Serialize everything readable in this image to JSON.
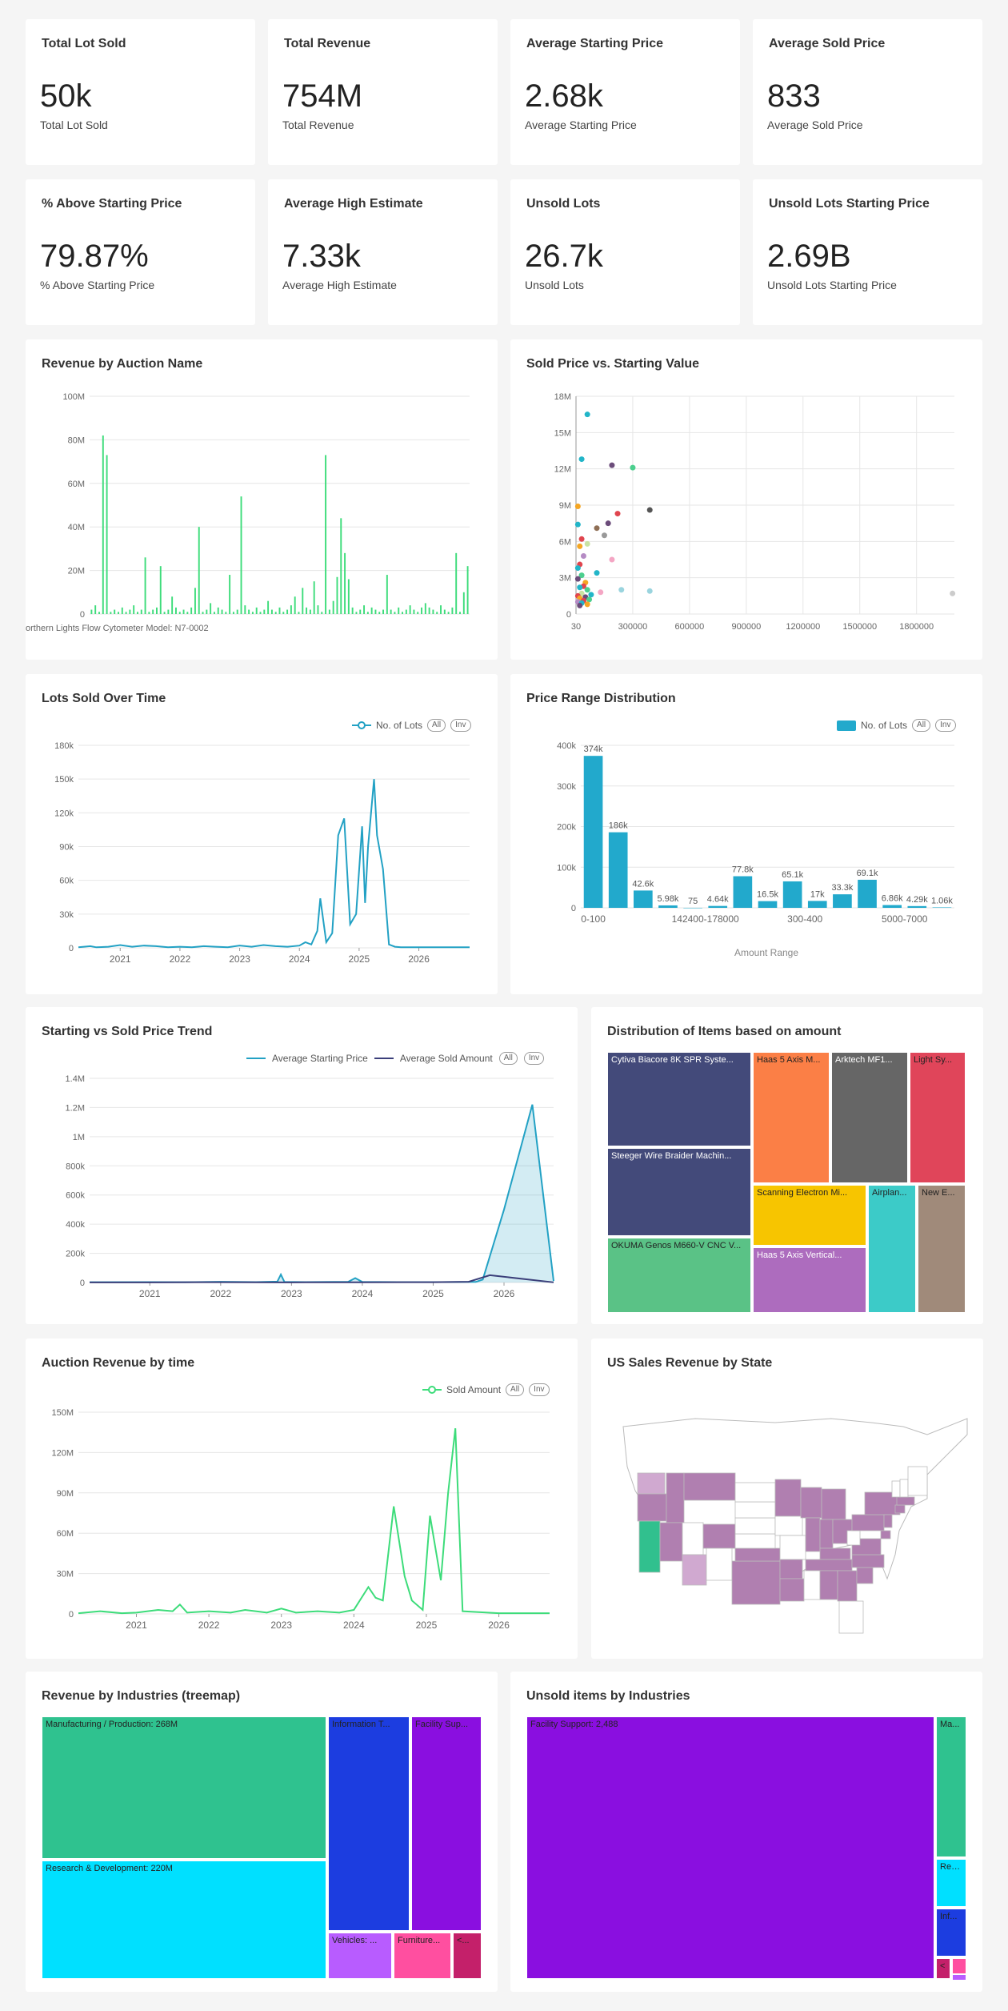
{
  "kpis": [
    {
      "title": "Total Lot Sold",
      "value": "50k",
      "sub": "Total Lot Sold"
    },
    {
      "title": "Total Revenue",
      "value": "754M",
      "sub": "Total Revenue"
    },
    {
      "title": "Average Starting Price",
      "value": "2.68k",
      "sub": "Average Starting Price"
    },
    {
      "title": "Average Sold Price",
      "value": "833",
      "sub": "Average Sold Price"
    },
    {
      "title": "% Above Starting Price",
      "value": "79.87%",
      "sub": "% Above Starting Price"
    },
    {
      "title": "Average High Estimate",
      "value": "7.33k",
      "sub": "Average High Estimate"
    },
    {
      "title": "Unsold Lots",
      "value": "26.7k",
      "sub": "Unsold Lots"
    },
    {
      "title": "Unsold Lots Starting Price",
      "value": "2.69B",
      "sub": "Unsold Lots Starting Price"
    }
  ],
  "legend_buttons": {
    "all": "All",
    "inv": "Inv"
  },
  "chart_data": [
    {
      "id": "revenue_by_auction",
      "type": "bar",
      "title": "Revenue by Auction Name",
      "yticks": [
        "0",
        "20M",
        "40M",
        "60M",
        "80M",
        "100M"
      ],
      "ylim": [
        0,
        100000000
      ],
      "xtick_label": "orthern Lights Flow Cytometer Model: N7-0002",
      "color": "#3ddc7a",
      "values": [
        2,
        4,
        1,
        82,
        73,
        1,
        2,
        1,
        3,
        1,
        2,
        4,
        1,
        2,
        26,
        1,
        2,
        3,
        22,
        1,
        2,
        8,
        3,
        1,
        2,
        1,
        3,
        12,
        40,
        1,
        2,
        5,
        1,
        3,
        2,
        1,
        18,
        1,
        2,
        54,
        4,
        2,
        1,
        3,
        1,
        2,
        6,
        2,
        1,
        3,
        1,
        2,
        4,
        8,
        1,
        12,
        3,
        2,
        15,
        4,
        1,
        73,
        2,
        6,
        17,
        44,
        28,
        16,
        3,
        1,
        2,
        4,
        1,
        3,
        2,
        1,
        2,
        18,
        2,
        1,
        3,
        1,
        2,
        4,
        2,
        1,
        3,
        5,
        3,
        2,
        1,
        4,
        2,
        1,
        3,
        28,
        1,
        10,
        22
      ]
    },
    {
      "id": "sold_vs_starting",
      "type": "scatter",
      "title": "Sold Price vs. Starting Value",
      "xticks": [
        "30",
        "300000",
        "600000",
        "900000",
        "1200000",
        "1500000",
        "1800000"
      ],
      "yticks": [
        "0",
        "3M",
        "6M",
        "9M",
        "12M",
        "15M",
        "18M"
      ],
      "xlim": [
        30,
        2000000
      ],
      "ylim": [
        0,
        18000000
      ],
      "points": [
        {
          "x": 60000,
          "y": 16500000,
          "c": "#22b5c8"
        },
        {
          "x": 30000,
          "y": 12800000,
          "c": "#22b5c8"
        },
        {
          "x": 190000,
          "y": 12300000,
          "c": "#6b4c7a"
        },
        {
          "x": 300000,
          "y": 12100000,
          "c": "#4ccf8e"
        },
        {
          "x": 10000,
          "y": 8900000,
          "c": "#f5a623"
        },
        {
          "x": 390000,
          "y": 8600000,
          "c": "#555555"
        },
        {
          "x": 220000,
          "y": 8300000,
          "c": "#e0454e"
        },
        {
          "x": 10000,
          "y": 7400000,
          "c": "#22b5c8"
        },
        {
          "x": 170000,
          "y": 7500000,
          "c": "#6b4c7a"
        },
        {
          "x": 110000,
          "y": 7100000,
          "c": "#8f6f55"
        },
        {
          "x": 150000,
          "y": 6500000,
          "c": "#999999"
        },
        {
          "x": 30000,
          "y": 6200000,
          "c": "#e0454e"
        },
        {
          "x": 60000,
          "y": 5800000,
          "c": "#c9e3a3"
        },
        {
          "x": 20000,
          "y": 5600000,
          "c": "#f5a623"
        },
        {
          "x": 40000,
          "y": 4800000,
          "c": "#b58bc4"
        },
        {
          "x": 190000,
          "y": 4500000,
          "c": "#f4a6c4"
        },
        {
          "x": 20000,
          "y": 4100000,
          "c": "#e0454e"
        },
        {
          "x": 10000,
          "y": 3800000,
          "c": "#22b5c8"
        },
        {
          "x": 110000,
          "y": 3400000,
          "c": "#22b5c8"
        },
        {
          "x": 30000,
          "y": 3200000,
          "c": "#4ccf8e"
        },
        {
          "x": 10000,
          "y": 2900000,
          "c": "#6b4c7a"
        },
        {
          "x": 50000,
          "y": 2600000,
          "c": "#f5a623"
        },
        {
          "x": 40000,
          "y": 2300000,
          "c": "#e0454e"
        },
        {
          "x": 20000,
          "y": 2200000,
          "c": "#22b5c8"
        },
        {
          "x": 60000,
          "y": 2000000,
          "c": "#4ccf8e"
        },
        {
          "x": 240000,
          "y": 2000000,
          "c": "#9ad4de"
        },
        {
          "x": 390000,
          "y": 1900000,
          "c": "#9ad4de"
        },
        {
          "x": 130000,
          "y": 1800000,
          "c": "#f4a6c4"
        },
        {
          "x": 30000,
          "y": 1700000,
          "c": "#c9e3a3"
        },
        {
          "x": 80000,
          "y": 1600000,
          "c": "#22b5c8"
        },
        {
          "x": 10000,
          "y": 1500000,
          "c": "#e0454e"
        },
        {
          "x": 50000,
          "y": 1400000,
          "c": "#6b4c7a"
        },
        {
          "x": 20000,
          "y": 1300000,
          "c": "#f5a623"
        },
        {
          "x": 70000,
          "y": 1200000,
          "c": "#4ccf8e"
        },
        {
          "x": 40000,
          "y": 1100000,
          "c": "#e0454e"
        },
        {
          "x": 10000,
          "y": 1000000,
          "c": "#b58bc4"
        },
        {
          "x": 30000,
          "y": 900000,
          "c": "#22b5c8"
        },
        {
          "x": 60000,
          "y": 800000,
          "c": "#f5a623"
        },
        {
          "x": 20000,
          "y": 700000,
          "c": "#6b4c7a"
        },
        {
          "x": 1990000,
          "y": 1700000,
          "c": "#cccccc"
        }
      ]
    },
    {
      "id": "lots_over_time",
      "type": "line",
      "title": "Lots Sold Over Time",
      "legend": "No. of Lots",
      "color": "#22a1c4",
      "xticks": [
        "2021",
        "2022",
        "2023",
        "2024",
        "2025",
        "2026"
      ],
      "xlim": [
        2020.3,
        2026.85
      ],
      "yticks": [
        "0",
        "30k",
        "60k",
        "90k",
        "120k",
        "150k",
        "180k"
      ],
      "ylim": [
        0,
        180000
      ],
      "x": [
        2020.3,
        2020.5,
        2020.6,
        2020.8,
        2021.0,
        2021.2,
        2021.4,
        2021.6,
        2021.8,
        2022.0,
        2022.2,
        2022.4,
        2022.6,
        2022.8,
        2023.0,
        2023.2,
        2023.4,
        2023.6,
        2023.8,
        2024.0,
        2024.1,
        2024.2,
        2024.3,
        2024.35,
        2024.45,
        2024.55,
        2024.65,
        2024.75,
        2024.85,
        2024.95,
        2025.05,
        2025.1,
        2025.15,
        2025.25,
        2025.3,
        2025.4,
        2025.5,
        2025.6,
        2025.7,
        2026.0,
        2026.5,
        2026.85
      ],
      "y": [
        500,
        1500,
        500,
        1000,
        2500,
        1000,
        2000,
        1500,
        500,
        1000,
        500,
        1500,
        1000,
        500,
        2000,
        1000,
        2500,
        1500,
        1000,
        2000,
        5000,
        3000,
        15000,
        44000,
        5000,
        13000,
        100000,
        115000,
        21000,
        30000,
        108000,
        40000,
        90000,
        150000,
        100000,
        70000,
        3000,
        1000,
        500,
        500,
        500,
        500
      ]
    },
    {
      "id": "price_range",
      "type": "bar",
      "title": "Price Range Distribution",
      "legend": "No. of Lots",
      "color": "#22a9cc",
      "xlabel": "Amount Range",
      "xtick_labels": [
        "0-100",
        "142400-178000",
        "300-400",
        "5000-7000"
      ],
      "yticks": [
        "0",
        "100k",
        "200k",
        "300k",
        "400k"
      ],
      "ylim": [
        0,
        400000
      ],
      "values": [
        374000,
        186000,
        42600,
        5980,
        75,
        4640,
        77800,
        16500,
        65100,
        17000,
        33300,
        69100,
        6860,
        4290,
        1060
      ],
      "labels": [
        "374k",
        "186k",
        "42.6k",
        "5.98k",
        "75",
        "4.64k",
        "77.8k",
        "16.5k",
        "65.1k",
        "17k",
        "33.3k",
        "69.1k",
        "6.86k",
        "4.29k",
        "1.06k"
      ]
    },
    {
      "id": "starting_vs_sold_trend",
      "type": "area",
      "title": "Starting vs Sold Price Trend",
      "xticks": [
        "2021",
        "2022",
        "2023",
        "2024",
        "2025",
        "2026"
      ],
      "xlim": [
        2020.15,
        2026.7
      ],
      "yticks": [
        "0",
        "200k",
        "400k",
        "600k",
        "800k",
        "1M",
        "1.2M",
        "1.4M"
      ],
      "ylim": [
        0,
        1400000
      ],
      "series": [
        {
          "name": "Average Starting Price",
          "color": "#22a1c4",
          "fill": "rgba(34,161,196,0.2)",
          "x": [
            2020.15,
            2021.0,
            2021.5,
            2022.0,
            2022.5,
            2022.8,
            2022.85,
            2022.9,
            2023.2,
            2023.8,
            2023.9,
            2024.0,
            2024.5,
            2025.0,
            2025.6,
            2025.7,
            2026.0,
            2026.4,
            2026.7
          ],
          "y": [
            2000,
            3000,
            2000,
            5000,
            3000,
            6000,
            55000,
            4000,
            3000,
            5000,
            30000,
            4000,
            3000,
            3000,
            4000,
            20000,
            500000,
            1220000,
            10000
          ]
        },
        {
          "name": "Average Sold Amount",
          "color": "#3b3f7a",
          "x": [
            2020.15,
            2021.0,
            2022.0,
            2023.0,
            2024.0,
            2025.0,
            2025.5,
            2025.8,
            2026.7
          ],
          "y": [
            1000,
            1000,
            2000,
            1000,
            1500,
            2000,
            5000,
            50000,
            1000
          ]
        }
      ]
    },
    {
      "id": "revenue_by_time",
      "type": "line",
      "title": "Auction Revenue by time",
      "legend": "Sold Amount",
      "color": "#3ddc7a",
      "xticks": [
        "2021",
        "2022",
        "2023",
        "2024",
        "2025",
        "2026"
      ],
      "xlim": [
        2020.2,
        2026.7
      ],
      "yticks": [
        "0",
        "30M",
        "60M",
        "90M",
        "120M",
        "150M"
      ],
      "ylim": [
        0,
        150000000
      ],
      "x": [
        2020.2,
        2020.5,
        2020.8,
        2021.0,
        2021.3,
        2021.5,
        2021.6,
        2021.7,
        2022.0,
        2022.3,
        2022.5,
        2022.8,
        2023.0,
        2023.2,
        2023.5,
        2023.8,
        2024.0,
        2024.2,
        2024.3,
        2024.4,
        2024.55,
        2024.7,
        2024.8,
        2024.95,
        2025.05,
        2025.2,
        2025.3,
        2025.4,
        2025.5,
        2026.0,
        2026.7
      ],
      "y": [
        500000,
        2000000,
        500000,
        1000000,
        3000000,
        2000000,
        7000000,
        1000000,
        2000000,
        1000000,
        3000000,
        1000000,
        4000000,
        1000000,
        2000000,
        1000000,
        3000000,
        20000000,
        12000000,
        10000000,
        80000000,
        28000000,
        10000000,
        3000000,
        73000000,
        25000000,
        90000000,
        138000000,
        2000000,
        500000,
        500000
      ]
    }
  ],
  "treemap_items": {
    "title": "Distribution of Items based on amount",
    "cells": [
      {
        "label": "Cytiva Biacore 8K SPR Syste...",
        "color": "#434a7a",
        "text": "#ffffff"
      },
      {
        "label": "Steeger Wire Braider Machin...",
        "color": "#434a7a",
        "text": "#ffffff"
      },
      {
        "label": "OKUMA Genos M660-V CNC V...",
        "color": "#5ac286",
        "text": "#222222"
      },
      {
        "label": "Haas 5 Axis M...",
        "color": "#fb7f46",
        "text": "#222222"
      },
      {
        "label": "Arktech MF1...",
        "color": "#666666",
        "text": "#ffffff"
      },
      {
        "label": "Light Sy...",
        "color": "#e0455a",
        "text": "#222222"
      },
      {
        "label": "Scanning Electron Mi...",
        "color": "#f7c500",
        "text": "#222222"
      },
      {
        "label": "Haas 5 Axis Vertical...",
        "color": "#ad6cbe",
        "text": "#ffffff"
      },
      {
        "label": "Airplan...",
        "color": "#3ccbc8",
        "text": "#222222"
      },
      {
        "label": "New E...",
        "color": "#a08a7a",
        "text": "#222222"
      }
    ]
  },
  "us_map": {
    "title": "US Sales Revenue by State",
    "highlight": "#b07fb0",
    "green": "#31c08e",
    "light": "#d0a9d0"
  },
  "treemap_industries": {
    "title": "Revenue by Industries (treemap)",
    "cells": [
      {
        "label": "Manufacturing / Production: 268M",
        "color": "#2fc28f"
      },
      {
        "label": "Research & Development: 220M",
        "color": "#00e0ff"
      },
      {
        "label": "Information T...",
        "color": "#1c3de0"
      },
      {
        "label": "Facility Sup...",
        "color": "#8a0fe0"
      },
      {
        "label": "Vehicles: ...",
        "color": "#b85cff"
      },
      {
        "label": "Furniture...",
        "color": "#ff4fa0"
      },
      {
        "label": "<...",
        "color": "#c4206a"
      }
    ]
  },
  "treemap_unsold": {
    "title": "Unsold items by Industries",
    "cells": [
      {
        "label": "Facility Support: 2,488",
        "color": "#8a0fe0"
      },
      {
        "label": "Ma...",
        "color": "#2fc28f"
      },
      {
        "label": "Res...",
        "color": "#00e0ff"
      },
      {
        "label": "Inf...",
        "color": "#1c3de0"
      },
      {
        "label": "<",
        "color": "#c4206a"
      },
      {
        "label": "",
        "color": "#ff4fa0"
      },
      {
        "label": "",
        "color": "#b85cff"
      }
    ]
  }
}
